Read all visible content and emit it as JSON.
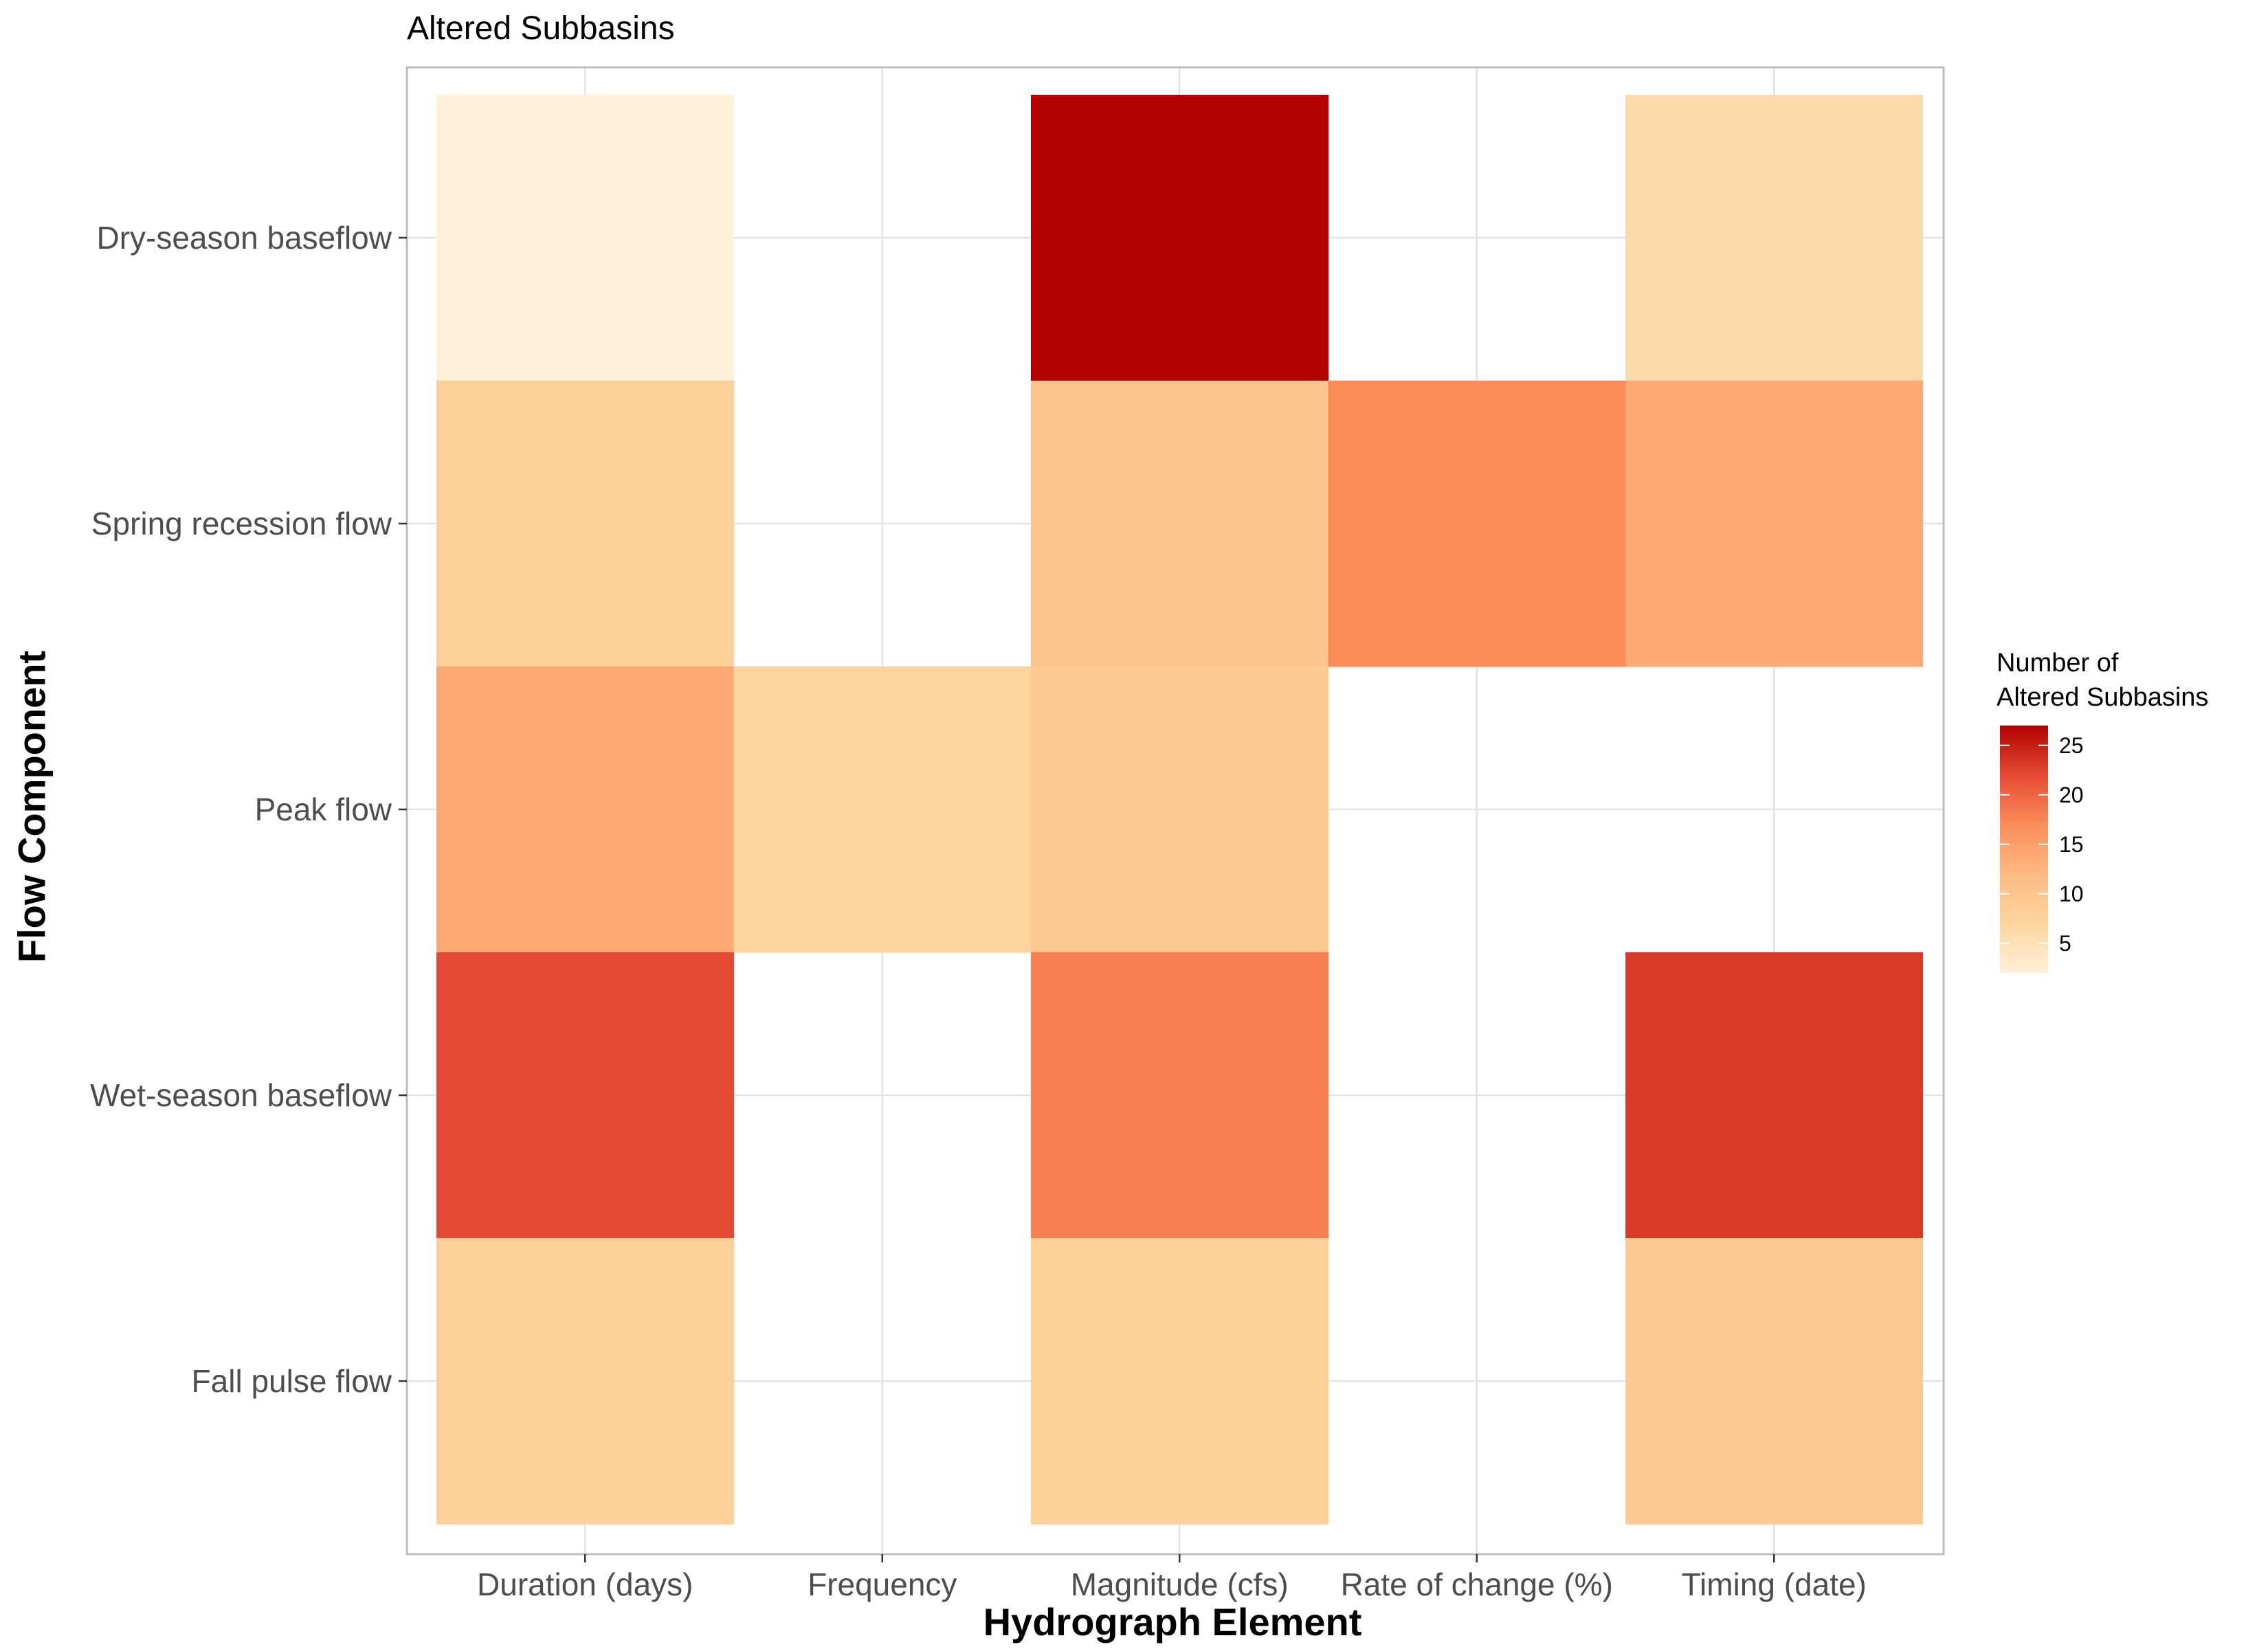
{
  "chart_data": {
    "type": "heatmap",
    "title": "Altered Subbasins",
    "xlabel": "Hydrograph Element",
    "ylabel": "Flow Component",
    "x_categories": [
      "Duration (days)",
      "Frequency",
      "Magnitude (cfs)",
      "Rate of change (%)",
      "Timing (date)"
    ],
    "y_categories": [
      "Dry-season baseflow",
      "Spring recession flow",
      "Peak flow",
      "Wet-season baseflow",
      "Fall pulse flow"
    ],
    "cells": [
      {
        "x": "Duration (days)",
        "y": "Dry-season baseflow",
        "value": 2
      },
      {
        "x": "Magnitude (cfs)",
        "y": "Dry-season baseflow",
        "value": 27
      },
      {
        "x": "Timing (date)",
        "y": "Dry-season baseflow",
        "value": 6
      },
      {
        "x": "Duration (days)",
        "y": "Spring recession flow",
        "value": 8
      },
      {
        "x": "Magnitude (cfs)",
        "y": "Spring recession flow",
        "value": 10
      },
      {
        "x": "Rate of change (%)",
        "y": "Spring recession flow",
        "value": 17
      },
      {
        "x": "Timing (date)",
        "y": "Spring recession flow",
        "value": 14
      },
      {
        "x": "Duration (days)",
        "y": "Peak flow",
        "value": 14
      },
      {
        "x": "Frequency",
        "y": "Peak flow",
        "value": 7
      },
      {
        "x": "Magnitude (cfs)",
        "y": "Peak flow",
        "value": 9
      },
      {
        "x": "Duration (days)",
        "y": "Wet-season baseflow",
        "value": 22
      },
      {
        "x": "Magnitude (cfs)",
        "y": "Wet-season baseflow",
        "value": 18
      },
      {
        "x": "Timing (date)",
        "y": "Wet-season baseflow",
        "value": 23
      },
      {
        "x": "Duration (days)",
        "y": "Fall pulse flow",
        "value": 8
      },
      {
        "x": "Magnitude (cfs)",
        "y": "Fall pulse flow",
        "value": 8
      },
      {
        "x": "Timing (date)",
        "y": "Fall pulse flow",
        "value": 9
      }
    ],
    "legend": {
      "title_lines": [
        "Number of",
        "Altered Subbasins"
      ],
      "ticks": [
        5,
        10,
        15,
        20,
        25
      ],
      "range": [
        2,
        27
      ],
      "placement": "right"
    },
    "color_scale": {
      "low": "#FEF0D9",
      "high": "#B30000"
    },
    "grid": true
  }
}
